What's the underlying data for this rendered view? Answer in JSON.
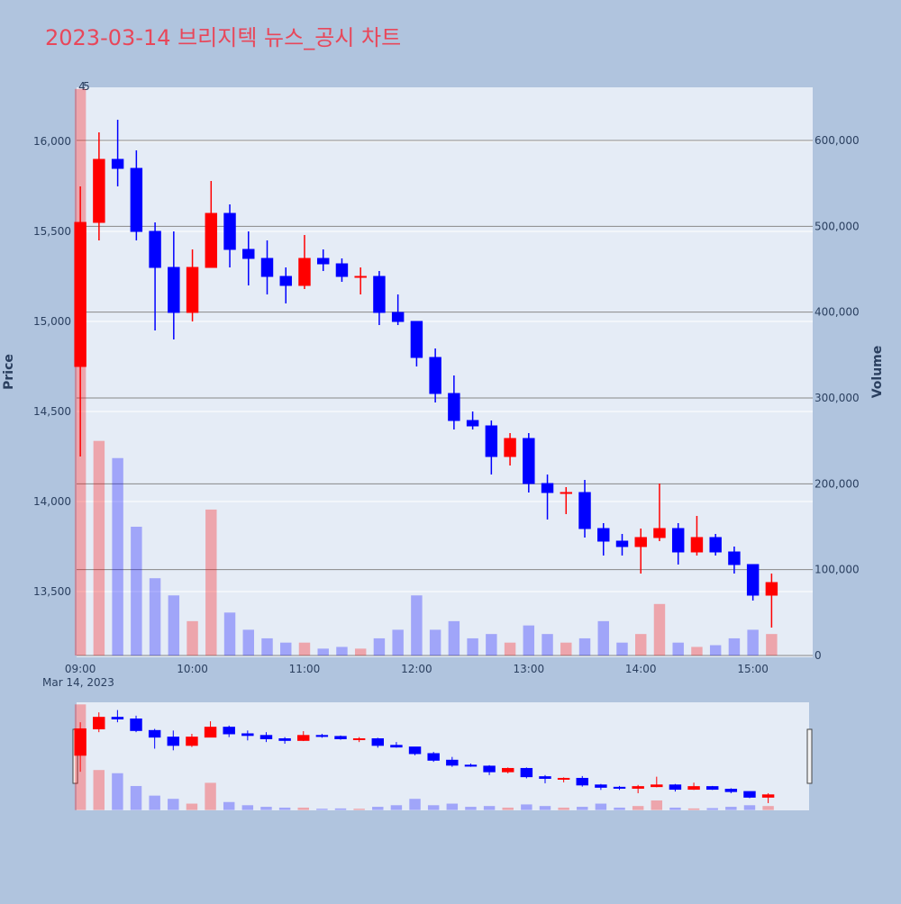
{
  "chart_data": {
    "type": "candlestick",
    "title": "2023-03-14 브리지텍 뉴스_공시 차트",
    "y_label": "Price",
    "y2_label": "Volume",
    "date_label": "Mar 14, 2023",
    "annotations": [
      "4",
      "5"
    ],
    "increasing_color": "#ff0000",
    "decreasing_color": "#0000ff",
    "x": [
      "09:00",
      "09:10",
      "09:20",
      "09:30",
      "09:40",
      "09:50",
      "10:00",
      "10:10",
      "10:20",
      "10:30",
      "10:40",
      "10:50",
      "11:00",
      "11:10",
      "11:20",
      "11:30",
      "11:40",
      "11:50",
      "12:00",
      "12:10",
      "12:20",
      "12:30",
      "12:40",
      "12:50",
      "13:00",
      "13:10",
      "13:20",
      "13:30",
      "13:40",
      "13:50",
      "14:00",
      "14:10",
      "14:20",
      "14:30",
      "14:40",
      "14:50",
      "15:00",
      "15:10"
    ],
    "open": [
      14750,
      15550,
      15900,
      15850,
      15500,
      15300,
      15050,
      15300,
      15600,
      15400,
      15350,
      15250,
      15200,
      15350,
      15320,
      15250,
      15250,
      15050,
      15000,
      14800,
      14600,
      14450,
      14420,
      14250,
      14350,
      14100,
      14050,
      14050,
      13850,
      13780,
      13750,
      13800,
      13850,
      13720,
      13800,
      13720,
      13650,
      13480
    ],
    "high": [
      15750,
      16050,
      16120,
      15950,
      15550,
      15500,
      15400,
      15780,
      15650,
      15500,
      15450,
      15300,
      15480,
      15400,
      15350,
      15300,
      15280,
      15150,
      15000,
      14850,
      14700,
      14500,
      14450,
      14380,
      14380,
      14150,
      14080,
      14120,
      13880,
      13820,
      13850,
      14100,
      13880,
      13920,
      13820,
      13750,
      13650,
      13600
    ],
    "low": [
      14250,
      15450,
      15750,
      15450,
      14950,
      14900,
      15000,
      15300,
      15300,
      15200,
      15150,
      15100,
      15180,
      15280,
      15220,
      15150,
      14980,
      14980,
      14750,
      14550,
      14400,
      14400,
      14150,
      14200,
      14050,
      13900,
      13930,
      13800,
      13700,
      13700,
      13600,
      13780,
      13650,
      13700,
      13700,
      13600,
      13450,
      13300
    ],
    "close": [
      15550,
      15900,
      15850,
      15500,
      15300,
      15050,
      15300,
      15600,
      15400,
      15350,
      15250,
      15200,
      15350,
      15320,
      15250,
      15250,
      15050,
      15000,
      14800,
      14600,
      14450,
      14420,
      14250,
      14350,
      14100,
      14050,
      14050,
      13850,
      13780,
      13750,
      13800,
      13850,
      13720,
      13800,
      13720,
      13650,
      13480,
      13550
    ],
    "volume": [
      660000,
      250000,
      230000,
      150000,
      90000,
      70000,
      40000,
      170000,
      50000,
      30000,
      20000,
      15000,
      15000,
      8000,
      10000,
      8000,
      20000,
      30000,
      70000,
      30000,
      40000,
      20000,
      25000,
      15000,
      35000,
      25000,
      15000,
      20000,
      40000,
      15000,
      25000,
      60000,
      15000,
      10000,
      12000,
      20000,
      30000,
      25000
    ],
    "xlim": [
      "08:58",
      "15:32"
    ],
    "xticks": [
      "09:00",
      "10:00",
      "11:00",
      "12:00",
      "13:00",
      "14:00",
      "15:00"
    ],
    "ylim": [
      13135,
      16300
    ],
    "yticks": [
      {
        "value": 13500,
        "label": "13,500"
      },
      {
        "value": 14000,
        "label": "14,000"
      },
      {
        "value": 14500,
        "label": "14,500"
      },
      {
        "value": 15000,
        "label": "15,000"
      },
      {
        "value": 15500,
        "label": "15,500"
      },
      {
        "value": 16000,
        "label": "16,000"
      }
    ],
    "y2lim": [
      -2100,
      661900
    ],
    "y2ticks": [
      0,
      {
        "value": 100000,
        "label": "100,000"
      },
      {
        "value": 200000,
        "label": "200,000"
      },
      {
        "value": 300000,
        "label": "300,000"
      },
      {
        "value": 400000,
        "label": "400,000"
      },
      {
        "value": 500000,
        "label": "500,000"
      },
      {
        "value": 600000,
        "label": "600,000"
      }
    ],
    "grid": true
  }
}
